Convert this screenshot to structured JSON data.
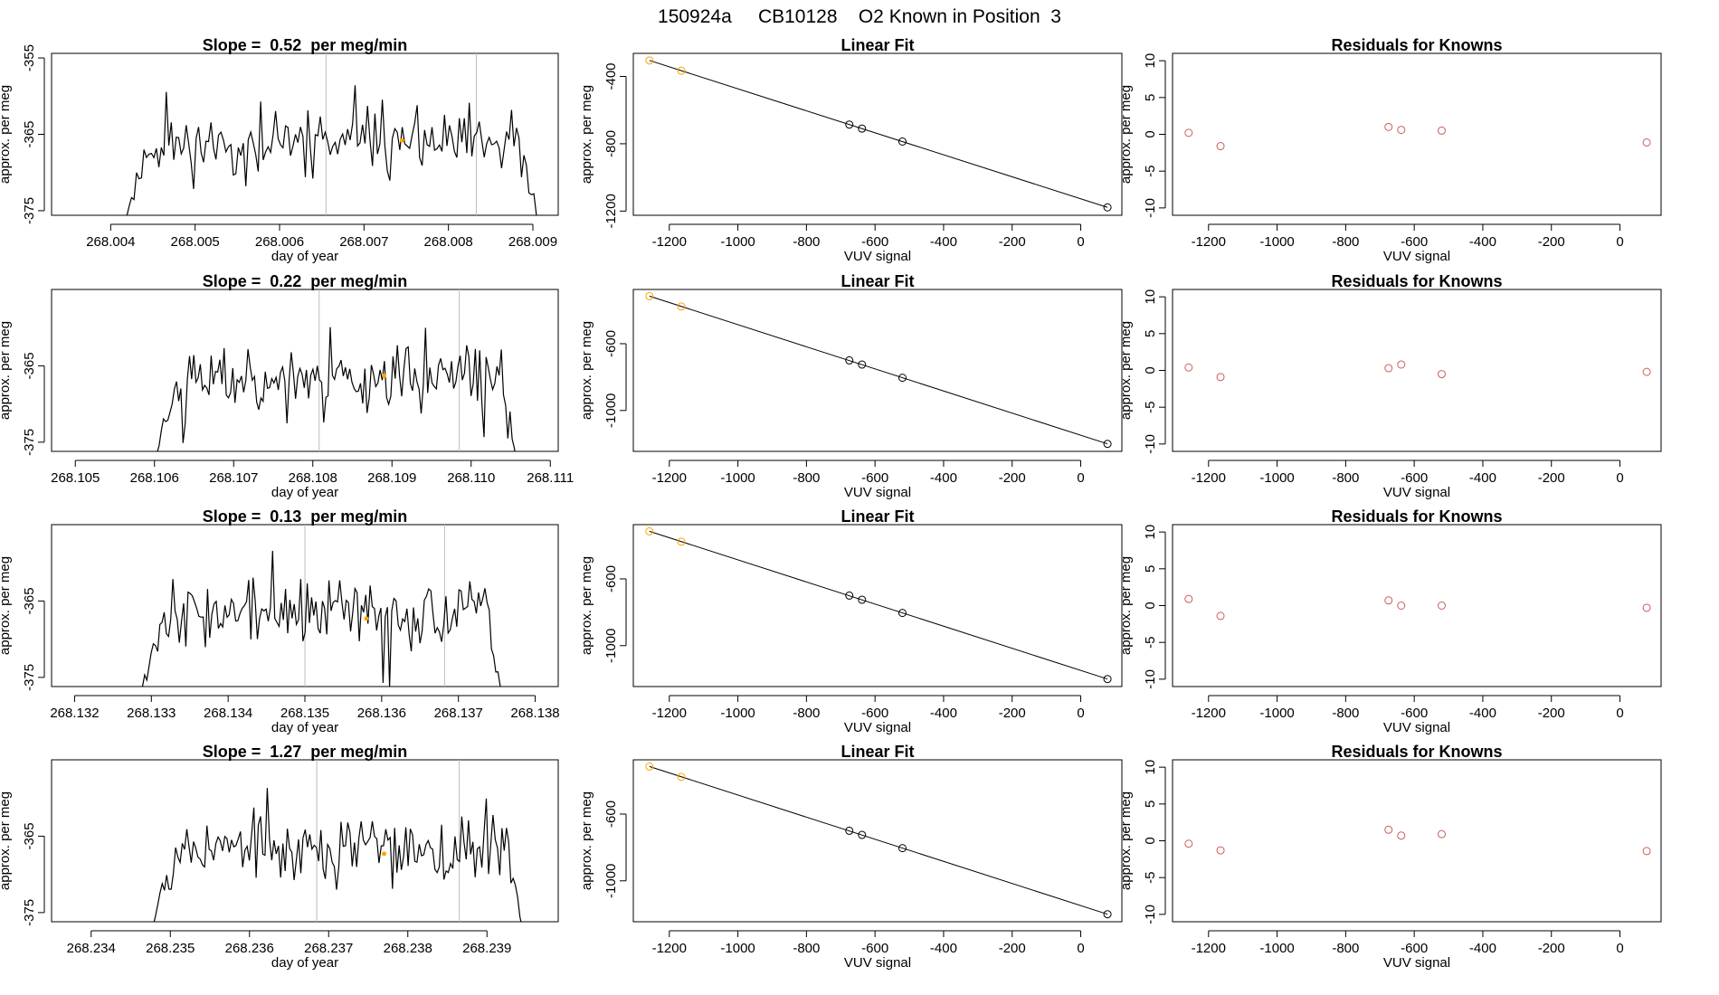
{
  "figure_title": "150924a     CB10128    O2 Known in Position  3",
  "colors": {
    "line": "#000000",
    "vline": "#bebebe",
    "orange_point": "#ffa500",
    "red_point": "#cd5c5c",
    "axis": "#000000"
  },
  "chart_data": [
    {
      "type": "line",
      "row": 1,
      "title": "Slope =  0.52  per meg/min",
      "xlabel": "day of year",
      "ylabel": "approx. per meg",
      "xlim": [
        268.0033,
        268.0093
      ],
      "ylim": [
        -375.6,
        -354.4
      ],
      "xticks": [
        268.004,
        268.005,
        268.006,
        268.007,
        268.008,
        268.009
      ],
      "xtick_labels": [
        "268.004",
        "268.005",
        "268.006",
        "268.007",
        "268.008",
        "268.009"
      ],
      "yticks": [
        -355,
        -365,
        -375
      ],
      "ytick_labels": [
        "-355",
        "-365",
        "-375"
      ],
      "vlines": [
        268.00655,
        268.00833
      ],
      "series_range": [
        268.0041,
        268.0091
      ],
      "marker": {
        "x": 268.00745,
        "y": -365.8
      },
      "seed": 11
    },
    {
      "type": "line",
      "row": 2,
      "title": "Slope =  0.22  per meg/min",
      "xlabel": "day of year",
      "ylabel": "approx. per meg",
      "xlim": [
        268.1047,
        268.1111
      ],
      "ylim": [
        -376.2,
        -355.0
      ],
      "xticks": [
        268.105,
        268.106,
        268.107,
        268.108,
        268.109,
        268.11,
        268.111
      ],
      "xtick_labels": [
        "268.105",
        "268.106",
        "268.107",
        "268.108",
        "268.109",
        "268.110",
        "268.111"
      ],
      "yticks": [
        -365,
        -375
      ],
      "ytick_labels": [
        "-365",
        "-375"
      ],
      "vlines": [
        268.10808,
        268.10985
      ],
      "series_range": [
        268.10595,
        268.1106
      ],
      "marker": {
        "x": 268.1089,
        "y": -366.3
      },
      "seed": 23
    },
    {
      "type": "line",
      "row": 3,
      "title": "Slope =  0.13  per meg/min",
      "xlabel": "day of year",
      "ylabel": "approx. per meg",
      "xlim": [
        268.1317,
        268.1383
      ],
      "ylim": [
        -376.2,
        -355.0
      ],
      "xticks": [
        268.132,
        268.133,
        268.134,
        268.135,
        268.136,
        268.137,
        268.138
      ],
      "xtick_labels": [
        "268.132",
        "268.133",
        "268.134",
        "268.135",
        "268.136",
        "268.137",
        "268.138"
      ],
      "yticks": [
        -365,
        -375
      ],
      "ytick_labels": [
        "-365",
        "-375"
      ],
      "vlines": [
        268.135,
        268.13682
      ],
      "series_range": [
        268.1328,
        268.1376
      ],
      "marker": {
        "x": 268.1358,
        "y": -367.3
      },
      "seed": 37
    },
    {
      "type": "line",
      "row": 4,
      "title": "Slope =  1.27  per meg/min",
      "xlabel": "day of year",
      "ylabel": "approx. per meg",
      "xlim": [
        268.2335,
        268.2399
      ],
      "ylim": [
        -376.2,
        -355.0
      ],
      "xticks": [
        268.234,
        268.235,
        268.236,
        268.237,
        268.238,
        268.239
      ],
      "xtick_labels": [
        "268.234",
        "268.235",
        "268.236",
        "268.237",
        "268.238",
        "268.239"
      ],
      "yticks": [
        -365,
        -375
      ],
      "ytick_labels": [
        "-365",
        "-375"
      ],
      "vlines": [
        268.23685,
        268.23865
      ],
      "series_range": [
        268.2347,
        268.2395
      ],
      "marker": {
        "x": 268.2377,
        "y": -367.3
      },
      "seed": 53
    },
    {
      "type": "scatter",
      "row": 1,
      "title": "Linear Fit",
      "xlabel": "VUV signal",
      "ylabel": "approx. per meg",
      "xlim": [
        -1305,
        120
      ],
      "ylim": [
        -1225,
        -263
      ],
      "xticks": [
        -1200,
        -1000,
        -800,
        -600,
        -400,
        -200,
        0
      ],
      "xtick_labels": [
        "-1200",
        "-1000",
        "-800",
        "-600",
        "-400",
        "-200",
        "0"
      ],
      "yticks": [
        -400,
        -800,
        -1200
      ],
      "ytick_labels": [
        "-400",
        "-800",
        "-1200"
      ],
      "fit_line": [
        [
          -1258,
          -305
        ],
        [
          78,
          -1178
        ]
      ],
      "points": [
        {
          "x": -1258,
          "y": -305,
          "color": "#ffa500"
        },
        {
          "x": -1165,
          "y": -366,
          "color": "#ffa500"
        },
        {
          "x": -675,
          "y": -686,
          "color": "#000000"
        },
        {
          "x": -638,
          "y": -710,
          "color": "#000000"
        },
        {
          "x": -520,
          "y": -787,
          "color": "#000000"
        },
        {
          "x": 78,
          "y": -1178,
          "color": "#000000"
        }
      ]
    },
    {
      "type": "scatter",
      "row": 2,
      "title": "Linear Fit",
      "xlabel": "VUV signal",
      "ylabel": "approx. per meg",
      "xlim": [
        -1305,
        120
      ],
      "ylim": [
        -1245,
        -275
      ],
      "xticks": [
        -1200,
        -1000,
        -800,
        -600,
        -400,
        -200,
        0
      ],
      "xtick_labels": [
        "-1200",
        "-1000",
        "-800",
        "-600",
        "-400",
        "-200",
        "0"
      ],
      "yticks": [
        -600,
        -1000
      ],
      "ytick_labels": [
        "-600",
        "-1000"
      ],
      "fit_line": [
        [
          -1258,
          -315
        ],
        [
          78,
          -1200
        ]
      ],
      "points": [
        {
          "x": -1258,
          "y": -315,
          "color": "#ffa500"
        },
        {
          "x": -1165,
          "y": -377,
          "color": "#ffa500"
        },
        {
          "x": -675,
          "y": -700,
          "color": "#000000"
        },
        {
          "x": -638,
          "y": -725,
          "color": "#000000"
        },
        {
          "x": -520,
          "y": -804,
          "color": "#000000"
        },
        {
          "x": 78,
          "y": -1200,
          "color": "#000000"
        }
      ]
    },
    {
      "type": "scatter",
      "row": 3,
      "title": "Linear Fit",
      "xlabel": "VUV signal",
      "ylabel": "approx. per meg",
      "xlim": [
        -1305,
        120
      ],
      "ylim": [
        -1245,
        -275
      ],
      "xticks": [
        -1200,
        -1000,
        -800,
        -600,
        -400,
        -200,
        0
      ],
      "xtick_labels": [
        "-1200",
        "-1000",
        "-800",
        "-600",
        "-400",
        "-200",
        "0"
      ],
      "yticks": [
        -600,
        -1000
      ],
      "ytick_labels": [
        "-600",
        "-1000"
      ],
      "fit_line": [
        [
          -1258,
          -315
        ],
        [
          78,
          -1200
        ]
      ],
      "points": [
        {
          "x": -1258,
          "y": -315,
          "color": "#ffa500"
        },
        {
          "x": -1165,
          "y": -377,
          "color": "#ffa500"
        },
        {
          "x": -675,
          "y": -700,
          "color": "#000000"
        },
        {
          "x": -638,
          "y": -725,
          "color": "#000000"
        },
        {
          "x": -520,
          "y": -804,
          "color": "#000000"
        },
        {
          "x": 78,
          "y": -1200,
          "color": "#000000"
        }
      ]
    },
    {
      "type": "scatter",
      "row": 4,
      "title": "Linear Fit",
      "xlabel": "VUV signal",
      "ylabel": "approx. per meg",
      "xlim": [
        -1305,
        120
      ],
      "ylim": [
        -1245,
        -275
      ],
      "xticks": [
        -1200,
        -1000,
        -800,
        -600,
        -400,
        -200,
        0
      ],
      "xtick_labels": [
        "-1200",
        "-1000",
        "-800",
        "-600",
        "-400",
        "-200",
        "0"
      ],
      "yticks": [
        -600,
        -1000
      ],
      "ytick_labels": [
        "-600",
        "-1000"
      ],
      "fit_line": [
        [
          -1258,
          -315
        ],
        [
          78,
          -1200
        ]
      ],
      "points": [
        {
          "x": -1258,
          "y": -315,
          "color": "#ffa500"
        },
        {
          "x": -1165,
          "y": -377,
          "color": "#ffa500"
        },
        {
          "x": -675,
          "y": -700,
          "color": "#000000"
        },
        {
          "x": -638,
          "y": -725,
          "color": "#000000"
        },
        {
          "x": -520,
          "y": -804,
          "color": "#000000"
        },
        {
          "x": 78,
          "y": -1200,
          "color": "#000000"
        }
      ]
    },
    {
      "type": "scatter",
      "row": 1,
      "title": "Residuals for Knowns",
      "xlabel": "VUV signal",
      "ylabel": "approx. per meg",
      "xlim": [
        -1305,
        120
      ],
      "ylim": [
        -11,
        11
      ],
      "xticks": [
        -1200,
        -1000,
        -800,
        -600,
        -400,
        -200,
        0
      ],
      "xtick_labels": [
        "-1200",
        "-1000",
        "-800",
        "-600",
        "-400",
        "-200",
        "0"
      ],
      "yticks": [
        10,
        5,
        0,
        -5,
        -10
      ],
      "ytick_labels": [
        "10",
        "5",
        "0",
        "-5",
        "-10"
      ],
      "points": [
        {
          "x": -1258,
          "y": 0.2,
          "color": "#cd5c5c"
        },
        {
          "x": -1165,
          "y": -1.6,
          "color": "#cd5c5c"
        },
        {
          "x": -675,
          "y": 1.0,
          "color": "#cd5c5c"
        },
        {
          "x": -638,
          "y": 0.6,
          "color": "#cd5c5c"
        },
        {
          "x": -520,
          "y": 0.5,
          "color": "#cd5c5c"
        },
        {
          "x": 78,
          "y": -1.1,
          "color": "#cd5c5c"
        }
      ]
    },
    {
      "type": "scatter",
      "row": 2,
      "title": "Residuals for Knowns",
      "xlabel": "VUV signal",
      "ylabel": "approx. per meg",
      "xlim": [
        -1305,
        120
      ],
      "ylim": [
        -11,
        11
      ],
      "xticks": [
        -1200,
        -1000,
        -800,
        -600,
        -400,
        -200,
        0
      ],
      "xtick_labels": [
        "-1200",
        "-1000",
        "-800",
        "-600",
        "-400",
        "-200",
        "0"
      ],
      "yticks": [
        10,
        5,
        0,
        -5,
        -10
      ],
      "ytick_labels": [
        "10",
        "5",
        "0",
        "-5",
        "-10"
      ],
      "points": [
        {
          "x": -1258,
          "y": 0.4,
          "color": "#cd5c5c"
        },
        {
          "x": -1165,
          "y": -0.9,
          "color": "#cd5c5c"
        },
        {
          "x": -675,
          "y": 0.3,
          "color": "#cd5c5c"
        },
        {
          "x": -638,
          "y": 0.8,
          "color": "#cd5c5c"
        },
        {
          "x": -520,
          "y": -0.5,
          "color": "#cd5c5c"
        },
        {
          "x": 78,
          "y": -0.2,
          "color": "#cd5c5c"
        }
      ]
    },
    {
      "type": "scatter",
      "row": 3,
      "title": "Residuals for Knowns",
      "xlabel": "VUV signal",
      "ylabel": "approx. per meg",
      "xlim": [
        -1305,
        120
      ],
      "ylim": [
        -11,
        11
      ],
      "xticks": [
        -1200,
        -1000,
        -800,
        -600,
        -400,
        -200,
        0
      ],
      "xtick_labels": [
        "-1200",
        "-1000",
        "-800",
        "-600",
        "-400",
        "-200",
        "0"
      ],
      "yticks": [
        10,
        5,
        0,
        -5,
        -10
      ],
      "ytick_labels": [
        "10",
        "5",
        "0",
        "-5",
        "-10"
      ],
      "points": [
        {
          "x": -1258,
          "y": 0.9,
          "color": "#cd5c5c"
        },
        {
          "x": -1165,
          "y": -1.4,
          "color": "#cd5c5c"
        },
        {
          "x": -675,
          "y": 0.7,
          "color": "#cd5c5c"
        },
        {
          "x": -638,
          "y": 0.0,
          "color": "#cd5c5c"
        },
        {
          "x": -520,
          "y": 0.0,
          "color": "#cd5c5c"
        },
        {
          "x": 78,
          "y": -0.3,
          "color": "#cd5c5c"
        }
      ]
    },
    {
      "type": "scatter",
      "row": 4,
      "title": "Residuals for Knowns",
      "xlabel": "VUV signal",
      "ylabel": "approx. per meg",
      "xlim": [
        -1305,
        120
      ],
      "ylim": [
        -11,
        11
      ],
      "xticks": [
        -1200,
        -1000,
        -800,
        -600,
        -400,
        -200,
        0
      ],
      "xtick_labels": [
        "-1200",
        "-1000",
        "-800",
        "-600",
        "-400",
        "-200",
        "0"
      ],
      "yticks": [
        10,
        5,
        0,
        -5,
        -10
      ],
      "ytick_labels": [
        "10",
        "5",
        "0",
        "-5",
        "-10"
      ],
      "points": [
        {
          "x": -1258,
          "y": -0.4,
          "color": "#cd5c5c"
        },
        {
          "x": -1165,
          "y": -1.3,
          "color": "#cd5c5c"
        },
        {
          "x": -675,
          "y": 1.5,
          "color": "#cd5c5c"
        },
        {
          "x": -638,
          "y": 0.7,
          "color": "#cd5c5c"
        },
        {
          "x": -520,
          "y": 0.9,
          "color": "#cd5c5c"
        },
        {
          "x": 78,
          "y": -1.4,
          "color": "#cd5c5c"
        }
      ]
    }
  ]
}
